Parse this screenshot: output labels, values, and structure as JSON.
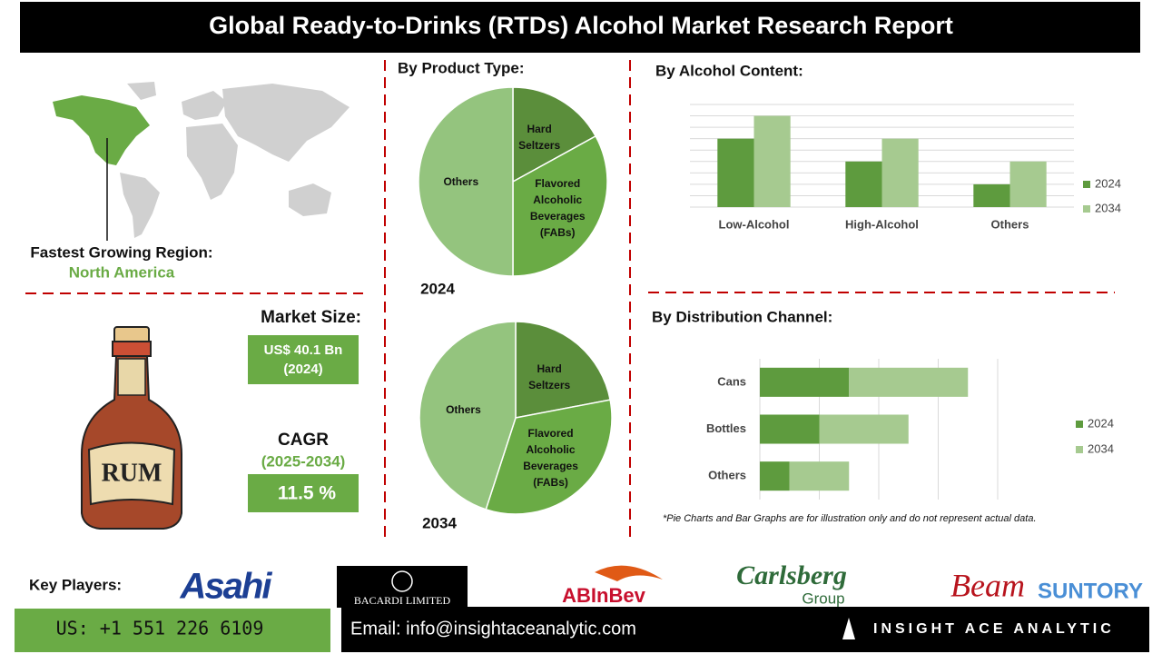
{
  "header": {
    "title": "Global Ready-to-Drinks (RTDs) Alcohol Market Research Report"
  },
  "region": {
    "label": "Fastest Growing Region:",
    "value": "North America"
  },
  "market": {
    "size_label": "Market Size:",
    "size_value": "US$ 40.1 Bn",
    "size_year": "(2024)",
    "cagr_label": "CAGR",
    "cagr_period": "(2025-2034)",
    "cagr_value": "11.5 %"
  },
  "chart_data": [
    {
      "type": "pie",
      "title": "By Product Type:",
      "caption": "2024",
      "categories": [
        "Hard Seltzers",
        "Flavored Alcoholic Beverages (FABs)",
        "Others"
      ],
      "values": [
        17,
        33,
        50
      ],
      "colors": [
        "#5b8e3b",
        "#6aab45",
        "#94c47e"
      ]
    },
    {
      "type": "pie",
      "caption": "2034",
      "categories": [
        "Hard Seltzers",
        "Flavored Alcoholic Beverages (FABs)",
        "Others"
      ],
      "values": [
        22,
        33,
        45
      ],
      "colors": [
        "#5b8e3b",
        "#6aab45",
        "#94c47e"
      ]
    },
    {
      "type": "bar",
      "title": "By Alcohol Content:",
      "categories": [
        "Low-Alcohol",
        "High-Alcohol",
        "Others"
      ],
      "series": [
        {
          "name": "2024",
          "color": "#5e9b3e",
          "values": [
            6,
            4,
            2
          ]
        },
        {
          "name": "2034",
          "color": "#a6ca90",
          "values": [
            8,
            6,
            4
          ]
        }
      ],
      "ylim": [
        0,
        9
      ],
      "grid": true,
      "legend": "right"
    },
    {
      "type": "stacked_barh",
      "title": "By Distribution Channel:",
      "categories": [
        "Cans",
        "Bottles",
        "Others"
      ],
      "series": [
        {
          "name": "2024",
          "color": "#5e9b3e",
          "values": [
            1.5,
            1,
            0.5
          ]
        },
        {
          "name": "2034",
          "color": "#a6ca90",
          "values": [
            2,
            1.5,
            1
          ]
        }
      ],
      "xlim": [
        0,
        4
      ],
      "grid": true,
      "legend": "right"
    }
  ],
  "footnote": "*Pie Charts and Bar Graphs are for illustration only and do not represent actual data.",
  "key_players": {
    "label": "Key Players:",
    "companies": [
      "Asahi",
      "BACARDI LIMITED",
      "ABInBev",
      "Carlsberg",
      "Group",
      "Beam",
      "SUNTORY"
    ]
  },
  "footer": {
    "phone": "US: +1 551 226 6109",
    "email": "Email: info@insightaceanalytic.com",
    "brand": "INSIGHT ACE ANALYTIC"
  }
}
